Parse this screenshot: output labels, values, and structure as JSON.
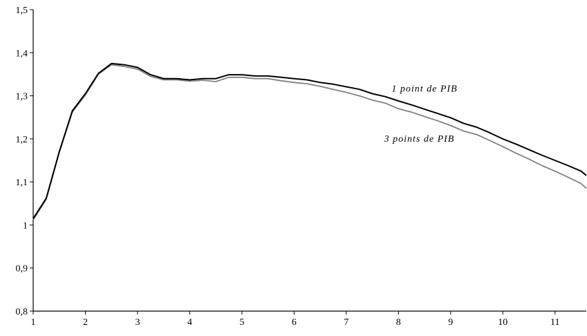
{
  "chart_data": {
    "type": "line",
    "title": "",
    "xlabel": "",
    "ylabel": "",
    "xlim": [
      1,
      11.6
    ],
    "ylim": [
      0.8,
      1.5
    ],
    "x_ticks": [
      1,
      2,
      3,
      4,
      5,
      6,
      7,
      8,
      9,
      10,
      11
    ],
    "x_tick_labels": [
      "1",
      "2",
      "3",
      "4",
      "5",
      "6",
      "7",
      "8",
      "9",
      "10",
      "11"
    ],
    "y_ticks": [
      0.8,
      0.9,
      1.0,
      1.1,
      1.2,
      1.3,
      1.4,
      1.5
    ],
    "y_tick_labels": [
      "0,8",
      "0,9",
      "1",
      "1,1",
      "1,2",
      "1,3",
      "1,4",
      "1,5"
    ],
    "grid": false,
    "legend": "none",
    "x": [
      1,
      1.25,
      1.5,
      1.75,
      2,
      2.25,
      2.5,
      2.75,
      3,
      3.25,
      3.5,
      3.75,
      4,
      4.25,
      4.5,
      4.75,
      5,
      5.25,
      5.5,
      5.75,
      6,
      6.25,
      6.5,
      6.75,
      7,
      7.25,
      7.5,
      7.75,
      8,
      8.25,
      8.5,
      8.75,
      9,
      9.25,
      9.5,
      9.75,
      10,
      10.25,
      10.5,
      10.75,
      11,
      11.25,
      11.5,
      11.6
    ],
    "series": [
      {
        "name": "1 point de PIB",
        "color": "#000000",
        "label_anchor": [
          8.5,
          1.31
        ],
        "values": [
          1.015,
          1.062,
          1.17,
          1.265,
          1.305,
          1.352,
          1.375,
          1.372,
          1.366,
          1.349,
          1.34,
          1.34,
          1.337,
          1.34,
          1.34,
          1.349,
          1.349,
          1.346,
          1.346,
          1.343,
          1.34,
          1.337,
          1.331,
          1.327,
          1.321,
          1.315,
          1.305,
          1.298,
          1.288,
          1.279,
          1.269,
          1.259,
          1.249,
          1.236,
          1.227,
          1.214,
          1.2,
          1.188,
          1.175,
          1.162,
          1.15,
          1.138,
          1.125,
          1.115
        ]
      },
      {
        "name": "3 points de PIB",
        "color": "#808080",
        "label_anchor": [
          8.4,
          1.193
        ],
        "values": [
          1.012,
          1.06,
          1.168,
          1.262,
          1.302,
          1.35,
          1.372,
          1.368,
          1.362,
          1.345,
          1.337,
          1.337,
          1.334,
          1.336,
          1.333,
          1.343,
          1.343,
          1.34,
          1.34,
          1.335,
          1.331,
          1.328,
          1.322,
          1.315,
          1.308,
          1.3,
          1.29,
          1.283,
          1.27,
          1.262,
          1.252,
          1.242,
          1.231,
          1.218,
          1.21,
          1.196,
          1.182,
          1.167,
          1.153,
          1.138,
          1.125,
          1.111,
          1.096,
          1.085
        ]
      }
    ]
  }
}
